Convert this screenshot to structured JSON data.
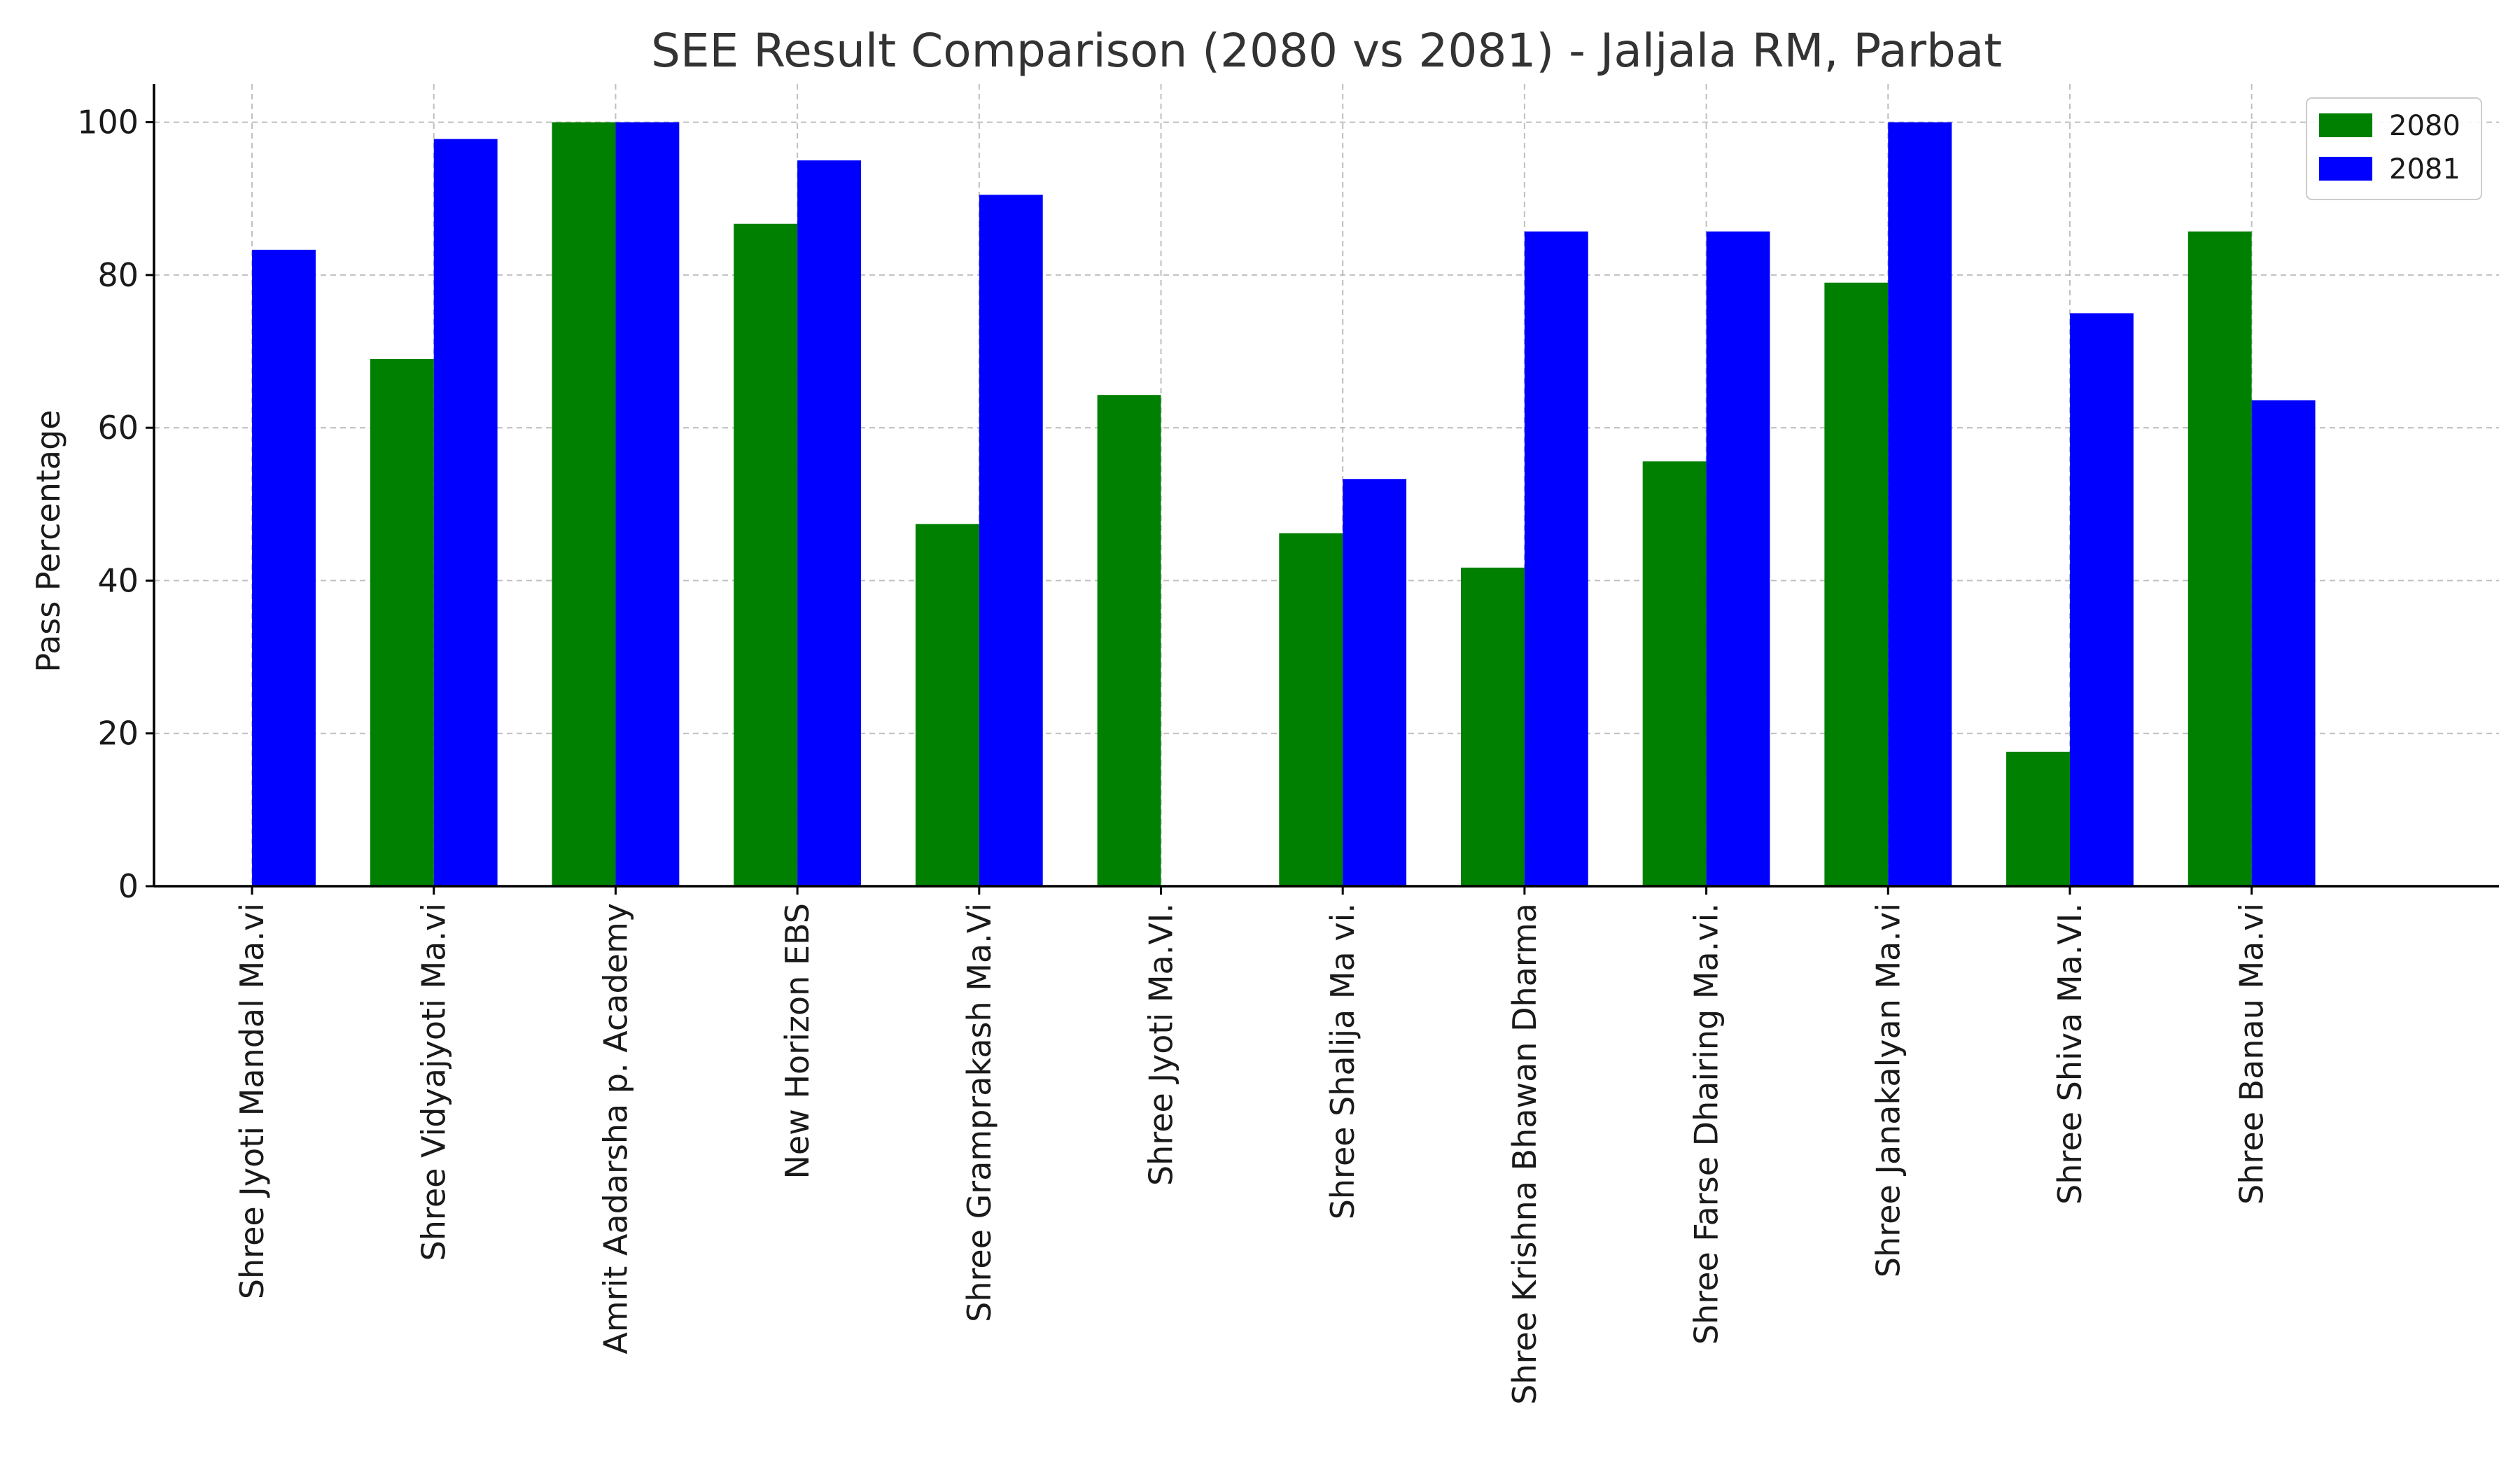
{
  "chart_data": {
    "type": "bar",
    "title": "SEE Result Comparison (2080 vs 2081) - Jaljala RM, Parbat",
    "xlabel": "",
    "ylabel": "Pass Percentage",
    "ylim": [
      0,
      105
    ],
    "yticks": [
      0,
      20,
      40,
      60,
      80,
      100
    ],
    "grid": true,
    "legend_position": "top-right",
    "categories": [
      "Shree Jyoti Mandal Ma.vi",
      "Shree Vidyajyoti Ma.vi",
      "Amrit Aadarsha p. Academy",
      "New Horizon EBS",
      "Shree Gramprakash Ma.Vi",
      "Shree Jyoti Ma.VI.",
      "Shree Shalija Ma vi.",
      "Shree Krishna Bhawan Dharma",
      "Shree Farse Dhairing Ma.vi.",
      "Shree Janakalyan Ma.vi",
      "Shree Shiva Ma.VI.",
      "Shree Banau Ma.vi"
    ],
    "series": [
      {
        "name": "2080",
        "color": "#008000",
        "values": [
          0,
          69,
          100,
          86.7,
          47.4,
          64.3,
          46.2,
          41.7,
          55.6,
          79,
          17.6,
          85.7
        ]
      },
      {
        "name": "2081",
        "color": "#0000ff",
        "values": [
          83.3,
          97.8,
          100,
          95,
          90.5,
          0,
          53.3,
          85.7,
          85.7,
          100,
          75,
          63.6
        ]
      }
    ]
  }
}
